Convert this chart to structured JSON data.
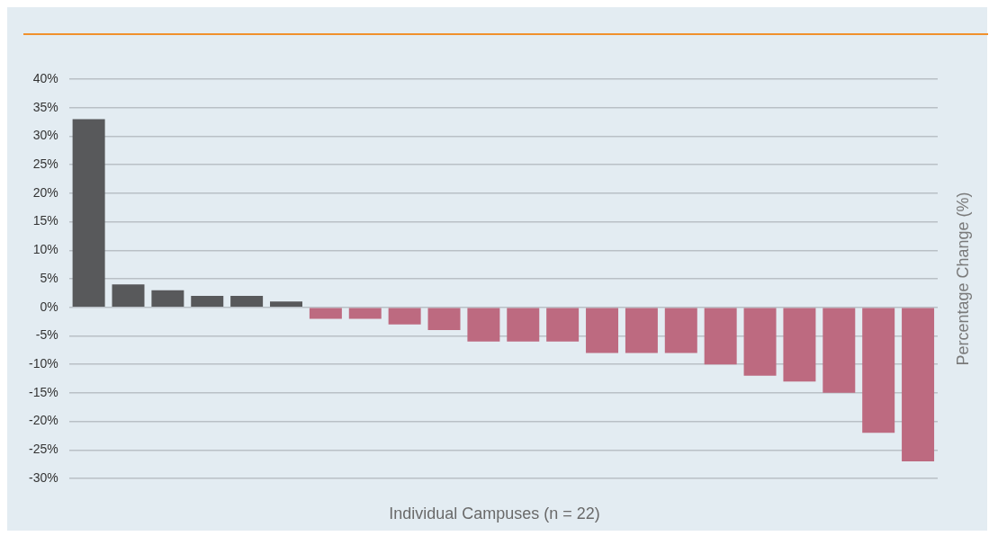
{
  "chart_data": {
    "type": "bar",
    "xlabel": "Individual Campuses (n = 22)",
    "ylabel": "Percentage Change (%)",
    "categories": [
      null,
      null,
      null,
      null,
      null,
      null,
      null,
      null,
      null,
      null,
      null,
      null,
      null,
      null,
      null,
      null,
      null,
      null,
      null,
      null,
      null,
      null
    ],
    "values": [
      33,
      4,
      3,
      2,
      2,
      1,
      -2,
      -2,
      -3,
      -4,
      -6,
      -6,
      -6,
      -8,
      -8,
      -8,
      -10,
      -12,
      -13,
      -15,
      -22,
      -27
    ],
    "colors": [
      "#58595b",
      "#58595b",
      "#58595b",
      "#58595b",
      "#58595b",
      "#58595b",
      "#bd6a80",
      "#bd6a80",
      "#bd6a80",
      "#bd6a80",
      "#bd6a80",
      "#bd6a80",
      "#bd6a80",
      "#bd6a80",
      "#bd6a80",
      "#bd6a80",
      "#bd6a80",
      "#bd6a80",
      "#bd6a80",
      "#bd6a80",
      "#bd6a80",
      "#bd6a80"
    ],
    "ylim": [
      -30,
      40
    ],
    "yticks": [
      {
        "value": -30,
        "label": "-30%"
      },
      {
        "value": -25,
        "label": "-25%"
      },
      {
        "value": -20,
        "label": "-20%"
      },
      {
        "value": -15,
        "label": "-15%"
      },
      {
        "value": -10,
        "label": "-10%"
      },
      {
        "value": -5,
        "label": "-5%"
      },
      {
        "value": 0,
        "label": "0%"
      },
      {
        "value": 5,
        "label": "5%"
      },
      {
        "value": 10,
        "label": "10%"
      },
      {
        "value": 15,
        "label": "15%"
      },
      {
        "value": 20,
        "label": "20%"
      },
      {
        "value": 25,
        "label": "25%"
      },
      {
        "value": 30,
        "label": "30%"
      },
      {
        "value": 35,
        "label": "35%"
      },
      {
        "value": 40,
        "label": "40%"
      }
    ],
    "grid": "y",
    "legend": false
  }
}
